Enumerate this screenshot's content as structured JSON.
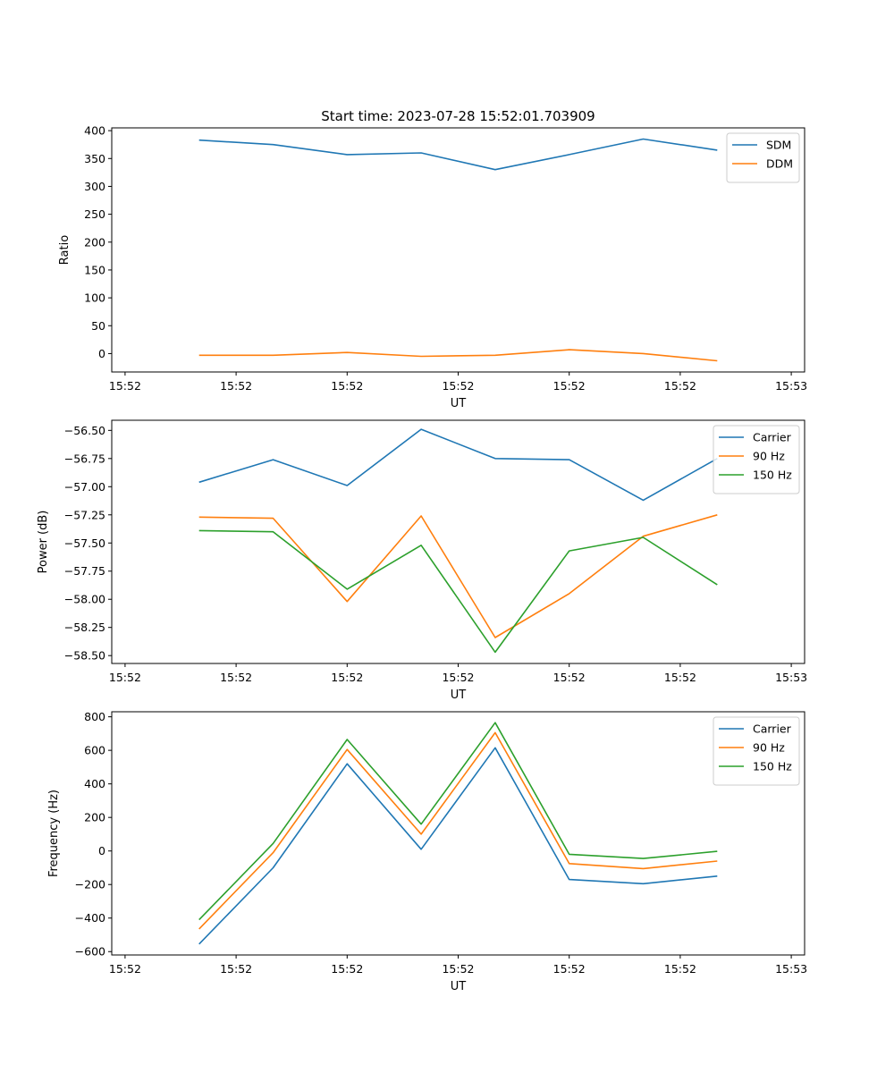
{
  "chart_data": [
    {
      "type": "line",
      "title": "Start time: 2023-07-28 15:52:01.703909",
      "xlabel": "UT",
      "ylabel": "Ratio",
      "x_tick_labels": [
        "15:52",
        "15:52",
        "15:52",
        "15:52",
        "15:52",
        "15:52",
        "15:53"
      ],
      "xlim": [
        -0.18,
        9.18
      ],
      "x": [
        1,
        2,
        3,
        4,
        5,
        6,
        7,
        8
      ],
      "ylim": [
        -33,
        405
      ],
      "yticks": [
        0,
        50,
        100,
        150,
        200,
        250,
        300,
        350,
        400
      ],
      "legend_position": "top-right",
      "series": [
        {
          "name": "SDM",
          "color": "#1f77b4",
          "values": [
            383,
            375,
            357,
            360,
            330,
            357,
            385,
            365
          ]
        },
        {
          "name": "DDM",
          "color": "#ff7f0e",
          "values": [
            -3,
            -3,
            2,
            -5,
            -3,
            7,
            0,
            -13
          ]
        }
      ]
    },
    {
      "type": "line",
      "title": "",
      "xlabel": "UT",
      "ylabel": "Power (dB)",
      "x_tick_labels": [
        "15:52",
        "15:52",
        "15:52",
        "15:52",
        "15:52",
        "15:52",
        "15:53"
      ],
      "xlim": [
        -0.18,
        9.18
      ],
      "x": [
        1,
        2,
        3,
        4,
        5,
        6,
        7,
        8
      ],
      "ylim": [
        -58.57,
        -56.41
      ],
      "yticks": [
        -58.5,
        -58.25,
        -58.0,
        -57.75,
        -57.5,
        -57.25,
        -57.0,
        -56.75,
        -56.5
      ],
      "legend_position": "top-right",
      "series": [
        {
          "name": "Carrier",
          "color": "#1f77b4",
          "values": [
            -56.96,
            -56.76,
            -56.99,
            -56.49,
            -56.75,
            -56.76,
            -57.12,
            -56.75
          ]
        },
        {
          "name": "90 Hz",
          "color": "#ff7f0e",
          "values": [
            -57.27,
            -57.28,
            -58.02,
            -57.26,
            -58.34,
            -57.95,
            -57.44,
            -57.25
          ]
        },
        {
          "name": "150 Hz",
          "color": "#2ca02c",
          "values": [
            -57.39,
            -57.4,
            -57.91,
            -57.52,
            -58.47,
            -57.57,
            -57.45,
            -57.87
          ]
        }
      ]
    },
    {
      "type": "line",
      "title": "",
      "xlabel": "UT",
      "ylabel": "Frequency (Hz)",
      "x_tick_labels": [
        "15:52",
        "15:52",
        "15:52",
        "15:52",
        "15:52",
        "15:52",
        "15:53"
      ],
      "xlim": [
        -0.18,
        9.18
      ],
      "x": [
        1,
        2,
        3,
        4,
        5,
        6,
        7,
        8
      ],
      "ylim": [
        -620,
        830
      ],
      "yticks": [
        -600,
        -400,
        -200,
        0,
        200,
        400,
        600,
        800
      ],
      "legend_position": "top-right",
      "series": [
        {
          "name": "Carrier",
          "color": "#1f77b4",
          "values": [
            -555,
            -100,
            520,
            10,
            615,
            -170,
            -195,
            -150
          ]
        },
        {
          "name": "90 Hz",
          "color": "#ff7f0e",
          "values": [
            -465,
            -10,
            605,
            100,
            705,
            -75,
            -105,
            -60
          ]
        },
        {
          "name": "150 Hz",
          "color": "#2ca02c",
          "values": [
            -410,
            45,
            665,
            160,
            765,
            -20,
            -45,
            -2
          ]
        }
      ]
    }
  ]
}
